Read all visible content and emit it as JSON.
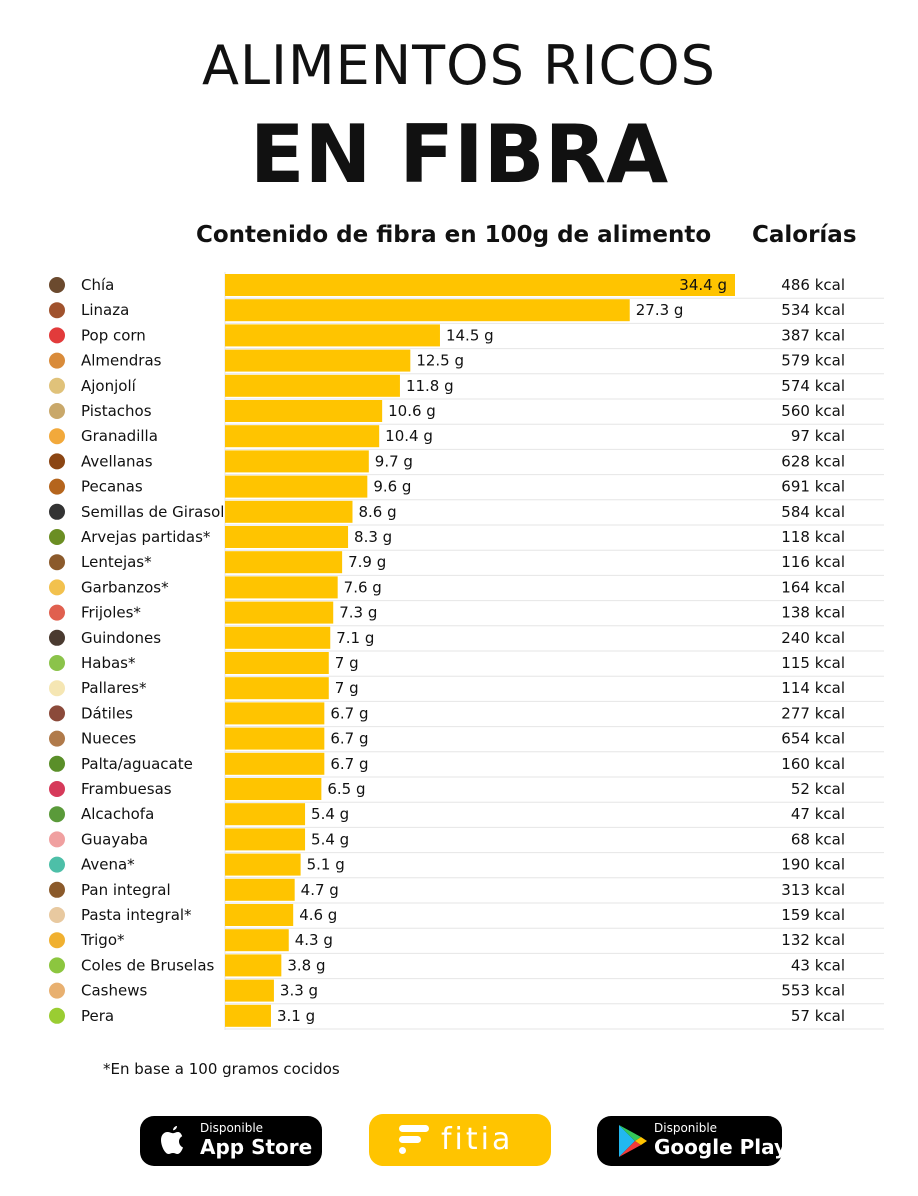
{
  "header": {
    "title_line1": "ALIMENTOS RICOS",
    "title_line2": "EN FIBRA",
    "subtitle": "Contenido de fibra en 100g de alimento",
    "calories_header": "Calorías"
  },
  "footnote": "*En base a 100 gramos cocidos",
  "badges": {
    "app_store_small": "Disponible",
    "app_store_big": "App Store",
    "fitia": "fitia",
    "google_small": "Disponible",
    "google_big": "Google Play"
  },
  "colors": {
    "bar": "#ffc400",
    "text": "#111111",
    "divider": "#e6e6e6"
  },
  "chart_data": {
    "type": "bar",
    "orientation": "horizontal",
    "title": "Contenido de fibra en 100g de alimento",
    "unit": "g",
    "categories": [
      "Chía",
      "Linaza",
      "Pop corn",
      "Almendras",
      "Ajonjolí",
      "Pistachos",
      "Granadilla",
      "Avellanas",
      "Pecanas",
      "Semillas de Girasol",
      "Arvejas partidas*",
      "Lentejas*",
      "Garbanzos*",
      "Frijoles*",
      "Guindones",
      "Habas*",
      "Pallares*",
      "Dátiles",
      "Nueces",
      "Palta/aguacate",
      "Frambuesas",
      "Alcachofa",
      "Guayaba",
      "Avena*",
      "Pan integral",
      "Pasta integral*",
      "Trigo*",
      "Coles de Bruselas",
      "Cashews",
      "Pera"
    ],
    "values": [
      34.4,
      27.3,
      14.5,
      12.5,
      11.8,
      10.6,
      10.4,
      9.7,
      9.6,
      8.6,
      8.3,
      7.9,
      7.6,
      7.3,
      7.1,
      7,
      7,
      6.7,
      6.7,
      6.7,
      6.5,
      5.4,
      5.4,
      5.1,
      4.7,
      4.6,
      4.3,
      3.8,
      3.3,
      3.1
    ],
    "value_labels": [
      "34.4 g",
      "27.3 g",
      "14.5 g",
      "12.5 g",
      "11.8 g",
      "10.6 g",
      "10.4 g",
      "9.7 g",
      "9.6 g",
      "8.6 g",
      "8.3 g",
      "7.9 g",
      "7.6 g",
      "7.3 g",
      "7.1 g",
      "7 g",
      "7 g",
      "6.7 g",
      "6.7 g",
      "6.7 g",
      "6.5 g",
      "5.4 g",
      "5.4 g",
      "5.1 g",
      "4.7 g",
      "4.6 g",
      "4.3 g",
      "3.8 g",
      "3.3 g",
      "3.1 g"
    ],
    "calories": [
      "486 kcal",
      "534 kcal",
      "387 kcal",
      "579 kcal",
      "574 kcal",
      "560 kcal",
      "97 kcal",
      "628 kcal",
      "691 kcal",
      "584 kcal",
      "118 kcal",
      "116 kcal",
      "164 kcal",
      "138 kcal",
      "240 kcal",
      "115 kcal",
      "114 kcal",
      "277 kcal",
      "654 kcal",
      "160 kcal",
      "52 kcal",
      "47 kcal",
      "68 kcal",
      "190 kcal",
      "313 kcal",
      "159 kcal",
      "132 kcal",
      "43 kcal",
      "553 kcal",
      "57 kcal"
    ],
    "icon_colors": [
      "#6b4a2e",
      "#a0522d",
      "#e23b3b",
      "#d98b3a",
      "#e0c27a",
      "#c9a86a",
      "#f2a93b",
      "#8b4513",
      "#b5651d",
      "#333333",
      "#6b8e23",
      "#8b5a2b",
      "#f2c14e",
      "#e0604f",
      "#4a3a30",
      "#8bc34a",
      "#f5e6b3",
      "#8b4a3a",
      "#b07a4a",
      "#5a8f29",
      "#d63a5a",
      "#5a9a3a",
      "#f0a0a0",
      "#4dbfa8",
      "#8b5a2b",
      "#e8c9a0",
      "#f0b030",
      "#8cc63f",
      "#e8b070",
      "#9acd32"
    ],
    "xlim": [
      0,
      34.4
    ],
    "grid": false,
    "legend": "none"
  }
}
